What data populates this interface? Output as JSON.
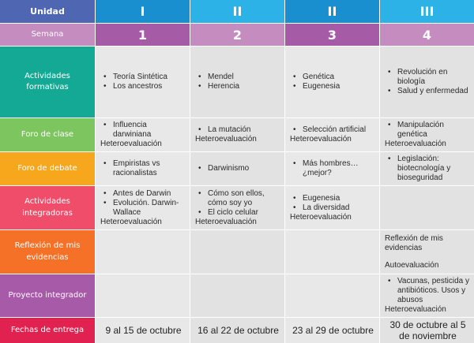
{
  "colors": {
    "unidad_label": "#4f67b2",
    "unit_dark": "#1a8fd0",
    "unit_light": "#2cb2e6",
    "semana_label": "#c58cbf",
    "week_dark": "#a55ba6",
    "week_light": "#c58cbf",
    "actividades_formativas": "#13a994",
    "foro_clase": "#7dc55e",
    "foro_debate": "#f6a71c",
    "actividades_integradoras": "#ef4d6a",
    "reflexion": "#f47127",
    "proyecto": "#a75aa8",
    "fechas": "#e12250",
    "cell_bg": "#e8e8e8"
  },
  "header": {
    "unidad_label": "Unidad",
    "units": [
      "I",
      "II",
      "II",
      "III"
    ],
    "semana_label": "Semana",
    "weeks": [
      "1",
      "2",
      "3",
      "4"
    ]
  },
  "rows": {
    "actividades_formativas": {
      "label": "Actividades formativas",
      "cells": [
        {
          "items": [
            "Teoría Sintética",
            "Los ancestros"
          ]
        },
        {
          "items": [
            "Mendel",
            "Herencia"
          ]
        },
        {
          "items": [
            "Genética",
            "Eugenesia"
          ]
        },
        {
          "items": [
            "Revolución en biología",
            "Salud y enfermedad"
          ]
        }
      ]
    },
    "foro_clase": {
      "label": "Foro de clase",
      "cells": [
        {
          "items": [
            "Influencia darwiniana"
          ],
          "note": "Heteroevaluación"
        },
        {
          "items": [
            "La mutación"
          ],
          "note": "Heteroevaluación"
        },
        {
          "items": [
            "Selección artificial"
          ],
          "note": "Heteroevaluación"
        },
        {
          "items": [
            "Manipulación genética"
          ],
          "note": "Heteroevaluación"
        }
      ]
    },
    "foro_debate": {
      "label": "Foro de debate",
      "cells": [
        {
          "items": [
            "Empiristas vs racionalistas"
          ]
        },
        {
          "items": [
            "Darwinismo"
          ]
        },
        {
          "items": [
            "Más hombres… ¿mejor?"
          ]
        },
        {
          "items": [
            "Legislación: biotecnología y bioseguridad"
          ]
        }
      ]
    },
    "actividades_integradoras": {
      "label": "Actividades integradoras",
      "cells": [
        {
          "items": [
            "Antes de Darwin",
            "Evolución. Darwin-Wallace"
          ],
          "note": "Heteroevaluación"
        },
        {
          "items": [
            "Cómo son ellos, cómo soy yo",
            "El ciclo celular"
          ],
          "note": "Heteroevaluación"
        },
        {
          "items": [
            "Eugenesia",
            "La diversidad"
          ],
          "note": "Heteroevaluación"
        },
        {
          "items": []
        }
      ]
    },
    "reflexion": {
      "label": "Reflexión de mis evidencias",
      "cells": [
        {
          "text": ""
        },
        {
          "text": ""
        },
        {
          "text": ""
        },
        {
          "text": "Reflexión de mis evidencias",
          "note": "Autoevaluación"
        }
      ]
    },
    "proyecto": {
      "label": "Proyecto integrador",
      "cells": [
        {
          "items": []
        },
        {
          "items": []
        },
        {
          "items": []
        },
        {
          "items": [
            "Vacunas, pesticida y antibióticos. Usos y abusos"
          ],
          "note": "Heteroevaluación"
        }
      ]
    },
    "fechas": {
      "label": "Fechas de entrega",
      "cells": [
        "9 al 15 de octubre",
        "16 al 22 de octubre",
        "23 al 29 de octubre",
        "30 de octubre al 5 de noviembre"
      ]
    }
  }
}
